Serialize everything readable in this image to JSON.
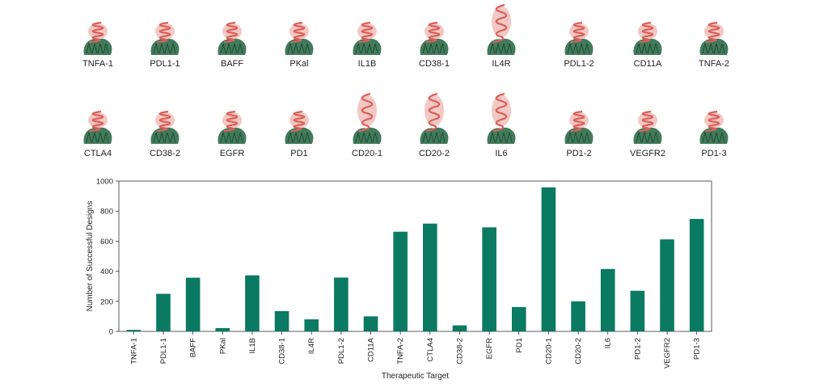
{
  "structures": {
    "rows": [
      [
        "TNFA-1",
        "PDL1-1",
        "BAFF",
        "PKal",
        "IL1B",
        "CD38-1",
        "IL4R",
        "PDL1-2",
        "CD11A",
        "TNFA-2"
      ],
      [
        "CTLA4",
        "CD38-2",
        "EGFR",
        "PD1",
        "CD20-1",
        "CD20-2",
        "IL6",
        "PD1-2",
        "VEGFR2",
        "PD1-3"
      ]
    ],
    "colors": {
      "binder": "#d9625a",
      "target": "#2f6b4a"
    }
  },
  "chart_data": {
    "type": "bar",
    "categories": [
      "TNFA-1",
      "PDL1-1",
      "BAFF",
      "PKal",
      "IL1B",
      "CD38-1",
      "IL4R",
      "PDL1-2",
      "CD11A",
      "TNFA-2",
      "CTLA4",
      "CD38-2",
      "EGFR",
      "PD1",
      "CD20-1",
      "CD20-2",
      "IL6",
      "PD1-2",
      "VEGFR2",
      "PD1-3"
    ],
    "values": [
      10,
      250,
      357,
      22,
      373,
      135,
      80,
      358,
      100,
      663,
      717,
      40,
      692,
      162,
      958,
      200,
      415,
      270,
      612,
      748
    ],
    "title": "",
    "xlabel": "Therapeutic Target",
    "ylabel": "Number of Successful Designs",
    "ylim": [
      0,
      1000
    ],
    "yticks": [
      0,
      200,
      400,
      600,
      800,
      1000
    ],
    "grid": false,
    "bar_color": "#0b7a62"
  }
}
